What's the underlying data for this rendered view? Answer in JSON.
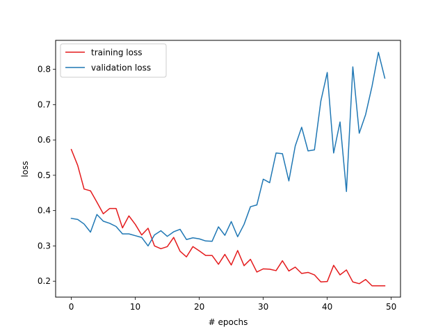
{
  "chart_data": {
    "type": "line",
    "title": "",
    "xlabel": "# epochs",
    "ylabel": "loss",
    "xlim": [
      -2.45,
      51.45
    ],
    "ylim": [
      0.155,
      0.882
    ],
    "xticks": [
      0,
      10,
      20,
      30,
      40,
      50
    ],
    "yticks": [
      0.2,
      0.3,
      0.4,
      0.5,
      0.6,
      0.7,
      0.8
    ],
    "ytick_labels": [
      "0.2",
      "0.3",
      "0.4",
      "0.5",
      "0.6",
      "0.7",
      "0.8"
    ],
    "grid": false,
    "legend_position": "upper-left",
    "series": [
      {
        "name": "training loss",
        "color": "#e41a1c",
        "x": [
          0,
          1,
          2,
          3,
          4,
          5,
          6,
          7,
          8,
          9,
          10,
          11,
          12,
          13,
          14,
          15,
          16,
          17,
          18,
          19,
          20,
          21,
          22,
          23,
          24,
          25,
          26,
          27,
          28,
          29,
          30,
          31,
          32,
          33,
          34,
          35,
          36,
          37,
          38,
          39,
          40,
          41,
          42,
          43,
          44,
          45,
          46,
          47,
          48,
          49
        ],
        "values": [
          0.573,
          0.528,
          0.461,
          0.456,
          0.424,
          0.391,
          0.406,
          0.406,
          0.351,
          0.385,
          0.361,
          0.331,
          0.35,
          0.3,
          0.292,
          0.298,
          0.324,
          0.285,
          0.269,
          0.298,
          0.286,
          0.273,
          0.273,
          0.248,
          0.276,
          0.246,
          0.287,
          0.244,
          0.262,
          0.226,
          0.235,
          0.234,
          0.23,
          0.258,
          0.229,
          0.24,
          0.222,
          0.225,
          0.218,
          0.198,
          0.199,
          0.245,
          0.218,
          0.232,
          0.198,
          0.193,
          0.205,
          0.187,
          0.187,
          0.187
        ]
      },
      {
        "name": "validation loss",
        "color": "#1f77b4",
        "x": [
          0,
          1,
          2,
          3,
          4,
          5,
          6,
          7,
          8,
          9,
          10,
          11,
          12,
          13,
          14,
          15,
          16,
          17,
          18,
          19,
          20,
          21,
          22,
          23,
          24,
          25,
          26,
          27,
          28,
          29,
          30,
          31,
          32,
          33,
          34,
          35,
          36,
          37,
          38,
          39,
          40,
          41,
          42,
          43,
          44,
          45,
          46,
          47,
          48,
          49
        ],
        "values": [
          0.378,
          0.375,
          0.362,
          0.339,
          0.389,
          0.37,
          0.364,
          0.355,
          0.334,
          0.334,
          0.329,
          0.324,
          0.3,
          0.331,
          0.343,
          0.327,
          0.34,
          0.347,
          0.318,
          0.323,
          0.32,
          0.314,
          0.313,
          0.354,
          0.33,
          0.369,
          0.326,
          0.361,
          0.411,
          0.416,
          0.489,
          0.479,
          0.563,
          0.561,
          0.484,
          0.583,
          0.636,
          0.569,
          0.572,
          0.71,
          0.791,
          0.563,
          0.651,
          0.454,
          0.807,
          0.619,
          0.672,
          0.752,
          0.848,
          0.775
        ]
      }
    ]
  }
}
